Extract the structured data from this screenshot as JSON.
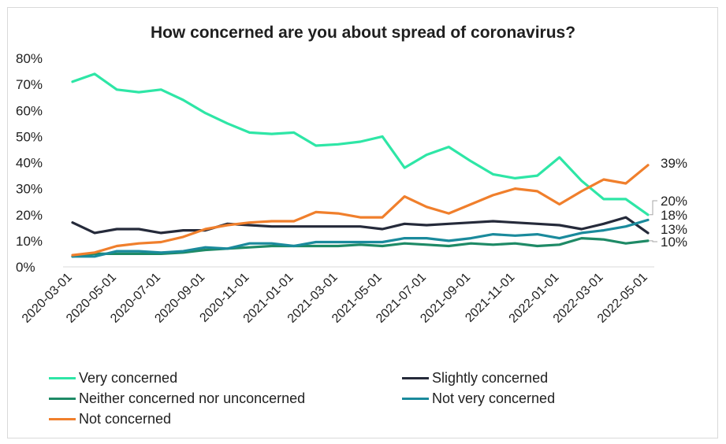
{
  "chart_data": {
    "type": "line",
    "title": "How concerned are you about spread of coronavirus?",
    "xlabel": "",
    "ylabel": "",
    "ylim": [
      0,
      80
    ],
    "yticks": [
      "0%",
      "10%",
      "20%",
      "30%",
      "40%",
      "50%",
      "60%",
      "70%",
      "80%"
    ],
    "grid": false,
    "legend_position": "bottom",
    "x": [
      "2020-03-01",
      "2020-04-01",
      "2020-05-01",
      "2020-06-01",
      "2020-07-01",
      "2020-08-01",
      "2020-09-01",
      "2020-10-01",
      "2020-11-01",
      "2020-12-01",
      "2021-01-01",
      "2021-02-01",
      "2021-03-01",
      "2021-04-01",
      "2021-05-01",
      "2021-06-01",
      "2021-07-01",
      "2021-08-01",
      "2021-09-01",
      "2021-10-01",
      "2021-11-01",
      "2021-12-01",
      "2022-01-01",
      "2022-02-01",
      "2022-03-01",
      "2022-04-01",
      "2022-05-01"
    ],
    "xticks": [
      "2020-03-01",
      "2020-05-01",
      "2020-07-01",
      "2020-09-01",
      "2020-11-01",
      "2021-01-01",
      "2021-03-01",
      "2021-05-01",
      "2021-07-01",
      "2021-09-01",
      "2021-11-01",
      "2022-01-01",
      "2022-03-01",
      "2022-05-01"
    ],
    "series": [
      {
        "name": "Very concerned",
        "color": "#2ee6a6",
        "values": [
          71,
          74,
          68,
          67,
          68,
          64,
          59,
          55,
          51.5,
          51,
          51.5,
          46.5,
          47,
          48,
          50,
          38,
          43,
          46,
          40.5,
          35.5,
          34,
          35,
          42,
          33,
          26,
          26,
          20
        ]
      },
      {
        "name": "Slightly concerned",
        "color": "#252a3a",
        "values": [
          17,
          13,
          14.5,
          14.5,
          13,
          14,
          14,
          16.5,
          16,
          15.5,
          15.5,
          15.5,
          15.5,
          15.5,
          14.5,
          16.5,
          16,
          16.5,
          17,
          17.5,
          17,
          16.5,
          16,
          14.5,
          16.5,
          19,
          13
        ]
      },
      {
        "name": "Neither concerned nor unconcerned",
        "color": "#1e8a66",
        "values": [
          4,
          5,
          5,
          5,
          5,
          5.5,
          6.5,
          7,
          7.5,
          8,
          8,
          8,
          8,
          8.5,
          8,
          9,
          8.5,
          8,
          9,
          8.5,
          9,
          8,
          8.5,
          11,
          10.5,
          9,
          10
        ]
      },
      {
        "name": "Not very concerned",
        "color": "#1a8a9c",
        "values": [
          4,
          4,
          6,
          6,
          5.5,
          6,
          7.5,
          7,
          9,
          9,
          8,
          9.5,
          9.5,
          9.5,
          9.5,
          11,
          11,
          10,
          11,
          12.5,
          12,
          12.5,
          11,
          13,
          14,
          15.5,
          18
        ]
      },
      {
        "name": "Not concerned",
        "color": "#f07f2c",
        "values": [
          4.5,
          5.5,
          8,
          9,
          9.5,
          11.5,
          14.5,
          16,
          17,
          17.5,
          17.5,
          21,
          20.5,
          19,
          19,
          27,
          23,
          20.5,
          24,
          27.5,
          30,
          29,
          24,
          29,
          33.5,
          32,
          39
        ]
      }
    ],
    "end_labels": [
      "39%",
      "20%",
      "18%",
      "13%",
      "10%"
    ]
  }
}
